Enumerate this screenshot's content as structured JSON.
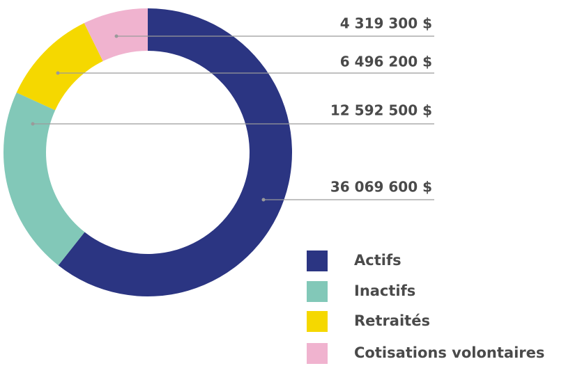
{
  "chart_data": {
    "type": "donut",
    "categories": [
      "Actifs",
      "Inactifs",
      "Retraités",
      "Cotisations volontaires"
    ],
    "values": [
      36069600,
      12592500,
      6496200,
      4319300
    ],
    "value_labels": [
      "36 069 600 $",
      "12 592 500 $",
      "6 496 200 $",
      "4 319 300 $"
    ],
    "colors": [
      "#2b3582",
      "#82c8b8",
      "#f5d800",
      "#f0b3cf"
    ]
  }
}
